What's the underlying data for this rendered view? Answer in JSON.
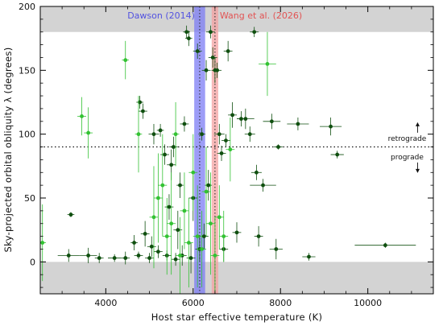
{
  "chart_data": {
    "type": "scatter",
    "title": "",
    "xlabel": "Host star effective temperature  (K)",
    "ylabel": "Sky-projected orbital obliquity  λ  (degrees)",
    "xlim": [
      2500,
      11500
    ],
    "ylim": [
      -25,
      200
    ],
    "xticks": [
      4000,
      6000,
      8000,
      10000
    ],
    "yticks": [
      0,
      50,
      100,
      150,
      200
    ],
    "grid": false,
    "shaded_ranges_y": [
      [
        180,
        200
      ],
      [
        -25,
        0
      ]
    ],
    "reference_line": {
      "y": 90,
      "style": "dotted"
    },
    "annotations": [
      {
        "text": "retrograde",
        "x": 10900,
        "y": 98,
        "arrow": "up"
      },
      {
        "text": "prograde",
        "x": 10900,
        "y": 81,
        "arrow": "down"
      }
    ],
    "bands": [
      {
        "label": "Dawson (2014)",
        "x_range": [
          6025,
          6275
        ],
        "center": 6150,
        "color": "#7c7cf4"
      },
      {
        "label": "Wang et al. (2026)",
        "x_range": [
          6425,
          6575
        ],
        "center": 6500,
        "color": "#f4a2a2"
      }
    ],
    "series": [
      {
        "color": "#0f4f0f",
        "points": [
          {
            "x": 3200,
            "y": 37,
            "ex": 80,
            "ey": 2
          },
          {
            "x": 3150,
            "y": 5,
            "ex": 250,
            "ey": 5
          },
          {
            "x": 3600,
            "y": 5,
            "ex": 200,
            "ey": 6
          },
          {
            "x": 3850,
            "y": 3,
            "ex": 100,
            "ey": 4
          },
          {
            "x": 4200,
            "y": 3,
            "ex": 150,
            "ey": 3
          },
          {
            "x": 4450,
            "y": 3,
            "ex": 100,
            "ey": 5
          },
          {
            "x": 4650,
            "y": 15,
            "ex": 80,
            "ey": 6
          },
          {
            "x": 4750,
            "y": 5,
            "ex": 100,
            "ey": 3
          },
          {
            "x": 4780,
            "y": 125,
            "ex": 80,
            "ey": 5
          },
          {
            "x": 4850,
            "y": 118,
            "ex": 100,
            "ey": 6
          },
          {
            "x": 4900,
            "y": 22,
            "ex": 100,
            "ey": 10
          },
          {
            "x": 5000,
            "y": 3,
            "ex": 100,
            "ey": 4
          },
          {
            "x": 5050,
            "y": 12,
            "ex": 100,
            "ey": 8
          },
          {
            "x": 5100,
            "y": 100,
            "ex": 120,
            "ey": 8
          },
          {
            "x": 5200,
            "y": 8,
            "ex": 100,
            "ey": 5
          },
          {
            "x": 5250,
            "y": 103,
            "ex": 80,
            "ey": 5
          },
          {
            "x": 5350,
            "y": 84,
            "ex": 100,
            "ey": 8
          },
          {
            "x": 5400,
            "y": 5,
            "ex": 100,
            "ey": 4
          },
          {
            "x": 5450,
            "y": 43,
            "ex": 100,
            "ey": 10
          },
          {
            "x": 5500,
            "y": 76,
            "ex": 100,
            "ey": 12
          },
          {
            "x": 5550,
            "y": 90,
            "ex": 100,
            "ey": 8
          },
          {
            "x": 5600,
            "y": 2,
            "ex": 100,
            "ey": 5
          },
          {
            "x": 5650,
            "y": 25,
            "ex": 100,
            "ey": 15
          },
          {
            "x": 5700,
            "y": 60,
            "ex": 80,
            "ey": 10
          },
          {
            "x": 5750,
            "y": 5,
            "ex": 100,
            "ey": 8
          },
          {
            "x": 5800,
            "y": 108,
            "ex": 100,
            "ey": 6
          },
          {
            "x": 5850,
            "y": 180,
            "ex": 80,
            "ey": 5
          },
          {
            "x": 5900,
            "y": 175,
            "ex": 80,
            "ey": 6
          },
          {
            "x": 5950,
            "y": 3,
            "ex": 100,
            "ey": 12
          },
          {
            "x": 6000,
            "y": 50,
            "ex": 100,
            "ey": 18
          },
          {
            "x": 6100,
            "y": 165,
            "ex": 100,
            "ey": 6
          },
          {
            "x": 6150,
            "y": 10,
            "ex": 100,
            "ey": 10
          },
          {
            "x": 6200,
            "y": 100,
            "ex": 80,
            "ey": 5
          },
          {
            "x": 6250,
            "y": 20,
            "ex": 100,
            "ey": 10
          },
          {
            "x": 6300,
            "y": 150,
            "ex": 100,
            "ey": 8
          },
          {
            "x": 6350,
            "y": 60,
            "ex": 80,
            "ey": 12
          },
          {
            "x": 6400,
            "y": 180,
            "ex": 100,
            "ey": 5
          },
          {
            "x": 6450,
            "y": 160,
            "ex": 100,
            "ey": 8
          },
          {
            "x": 6500,
            "y": 150,
            "ex": 80,
            "ey": 10
          },
          {
            "x": 6550,
            "y": 150,
            "ex": 100,
            "ey": 6
          },
          {
            "x": 6600,
            "y": 100,
            "ex": 120,
            "ey": 8
          },
          {
            "x": 6650,
            "y": 85,
            "ex": 100,
            "ey": 6
          },
          {
            "x": 6700,
            "y": 10,
            "ex": 100,
            "ey": 10
          },
          {
            "x": 6750,
            "y": 95,
            "ex": 100,
            "ey": 5
          },
          {
            "x": 6800,
            "y": 165,
            "ex": 100,
            "ey": 8
          },
          {
            "x": 6900,
            "y": 115,
            "ex": 100,
            "ey": 10
          },
          {
            "x": 7000,
            "y": 23,
            "ex": 100,
            "ey": 8
          },
          {
            "x": 7100,
            "y": 112,
            "ex": 100,
            "ey": 6
          },
          {
            "x": 7200,
            "y": 112,
            "ex": 200,
            "ey": 8
          },
          {
            "x": 7300,
            "y": 100,
            "ex": 120,
            "ey": 6
          },
          {
            "x": 7400,
            "y": 180,
            "ex": 100,
            "ey": 4
          },
          {
            "x": 7450,
            "y": 70,
            "ex": 120,
            "ey": 6
          },
          {
            "x": 7500,
            "y": 20,
            "ex": 100,
            "ey": 8
          },
          {
            "x": 7600,
            "y": 60,
            "ex": 300,
            "ey": 5
          },
          {
            "x": 7800,
            "y": 110,
            "ex": 200,
            "ey": 6
          },
          {
            "x": 7900,
            "y": 10,
            "ex": 150,
            "ey": 8
          },
          {
            "x": 7950,
            "y": 90,
            "ex": 100,
            "ey": 2
          },
          {
            "x": 8400,
            "y": 108,
            "ex": 250,
            "ey": 5
          },
          {
            "x": 8650,
            "y": 4,
            "ex": 150,
            "ey": 3
          },
          {
            "x": 9150,
            "y": 106,
            "ex": 250,
            "ey": 7
          },
          {
            "x": 9300,
            "y": 84,
            "ex": 150,
            "ey": 3
          },
          {
            "x": 10400,
            "y": 13,
            "ex": 700,
            "ey": 2
          }
        ]
      },
      {
        "color": "#33c233",
        "points": [
          {
            "x": 2550,
            "y": 15,
            "ex": 80,
            "ey": 30
          },
          {
            "x": 3450,
            "y": 114,
            "ex": 100,
            "ey": 15
          },
          {
            "x": 3600,
            "y": 101,
            "ex": 100,
            "ey": 20
          },
          {
            "x": 4450,
            "y": 158,
            "ex": 80,
            "ey": 15
          },
          {
            "x": 4750,
            "y": 100,
            "ex": 80,
            "ey": 30
          },
          {
            "x": 5100,
            "y": 35,
            "ex": 100,
            "ey": 40
          },
          {
            "x": 5200,
            "y": 50,
            "ex": 100,
            "ey": 35
          },
          {
            "x": 5300,
            "y": 60,
            "ex": 100,
            "ey": 40
          },
          {
            "x": 5400,
            "y": 20,
            "ex": 100,
            "ey": 30
          },
          {
            "x": 5500,
            "y": 30,
            "ex": 100,
            "ey": 40
          },
          {
            "x": 5600,
            "y": 100,
            "ex": 80,
            "ey": 25
          },
          {
            "x": 5700,
            "y": 5,
            "ex": 100,
            "ey": 30
          },
          {
            "x": 5800,
            "y": 40,
            "ex": 100,
            "ey": 30
          },
          {
            "x": 5900,
            "y": 15,
            "ex": 100,
            "ey": 35
          },
          {
            "x": 6000,
            "y": 70,
            "ex": 100,
            "ey": 30
          },
          {
            "x": 6100,
            "y": 20,
            "ex": 100,
            "ey": 40
          },
          {
            "x": 6200,
            "y": 10,
            "ex": 100,
            "ey": 30
          },
          {
            "x": 6300,
            "y": 55,
            "ex": 100,
            "ey": 35
          },
          {
            "x": 6400,
            "y": 30,
            "ex": 100,
            "ey": 40
          },
          {
            "x": 6500,
            "y": 5,
            "ex": 100,
            "ey": 30
          },
          {
            "x": 6600,
            "y": 35,
            "ex": 100,
            "ey": 25
          },
          {
            "x": 6700,
            "y": 20,
            "ex": 100,
            "ey": 20
          },
          {
            "x": 6850,
            "y": 88,
            "ex": 100,
            "ey": 25
          },
          {
            "x": 7700,
            "y": 155,
            "ex": 200,
            "ey": 25
          }
        ]
      }
    ]
  }
}
